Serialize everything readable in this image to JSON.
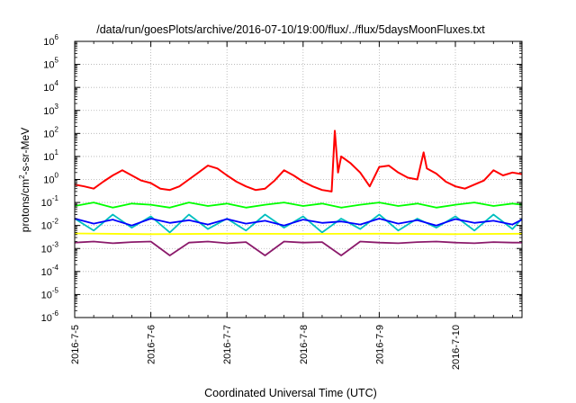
{
  "chart_data": {
    "type": "line",
    "title": "/data/run/goesPlots/archive/2016-07-10/19:00/flux/../flux/5daysMoonFluxes.txt",
    "xlabel": "Coordinated Universal Time (UTC)",
    "ylabel_prefix": "protons/cm",
    "ylabel_sup": "2",
    "ylabel_suffix": "-s-sr-MeV",
    "y_scale": "log",
    "ylim": [
      1e-06,
      1000000.0
    ],
    "y_ticks": [
      {
        "base": "10",
        "exp": "-6",
        "value": 1e-06
      },
      {
        "base": "10",
        "exp": "-5",
        "value": 1e-05
      },
      {
        "base": "10",
        "exp": "-4",
        "value": 0.0001
      },
      {
        "base": "10",
        "exp": "-3",
        "value": 0.001
      },
      {
        "base": "10",
        "exp": "-2",
        "value": 0.01
      },
      {
        "base": "10",
        "exp": "-1",
        "value": 0.1
      },
      {
        "base": "10",
        "exp": "0",
        "value": 1
      },
      {
        "base": "10",
        "exp": "1",
        "value": 10
      },
      {
        "base": "10",
        "exp": "2",
        "value": 100
      },
      {
        "base": "10",
        "exp": "3",
        "value": 1000
      },
      {
        "base": "10",
        "exp": "4",
        "value": 10000
      },
      {
        "base": "10",
        "exp": "5",
        "value": 100000
      },
      {
        "base": "10",
        "exp": "6",
        "value": 1000000
      }
    ],
    "xlim": [
      "2016-07-05 00:00",
      "2016-07-10 21:00"
    ],
    "x_tick_labels": [
      "2016-7-5",
      "2016-7-6",
      "2016-7-7",
      "2016-7-8",
      "2016-7-9",
      "2016-7-10"
    ],
    "grid": true,
    "legend": "none",
    "series": [
      {
        "color": "#ff0000",
        "x": [
          "2016-07-05 00:00",
          "2016-07-05 03:00",
          "2016-07-05 06:00",
          "2016-07-05 09:00",
          "2016-07-05 12:00",
          "2016-07-05 15:00",
          "2016-07-05 18:00",
          "2016-07-05 21:00",
          "2016-07-06 00:00",
          "2016-07-06 03:00",
          "2016-07-06 06:00",
          "2016-07-06 09:00",
          "2016-07-06 12:00",
          "2016-07-06 15:00",
          "2016-07-06 18:00",
          "2016-07-06 21:00",
          "2016-07-07 00:00",
          "2016-07-07 03:00",
          "2016-07-07 06:00",
          "2016-07-07 09:00",
          "2016-07-07 12:00",
          "2016-07-07 15:00",
          "2016-07-07 18:00",
          "2016-07-07 21:00",
          "2016-07-08 00:00",
          "2016-07-08 03:00",
          "2016-07-08 06:00",
          "2016-07-08 09:00",
          "2016-07-08 10:00",
          "2016-07-08 11:00",
          "2016-07-08 12:00",
          "2016-07-08 15:00",
          "2016-07-08 18:00",
          "2016-07-08 21:00",
          "2016-07-09 00:00",
          "2016-07-09 03:00",
          "2016-07-09 06:00",
          "2016-07-09 09:00",
          "2016-07-09 12:00",
          "2016-07-09 14:00",
          "2016-07-09 15:00",
          "2016-07-09 18:00",
          "2016-07-09 21:00",
          "2016-07-10 00:00",
          "2016-07-10 03:00",
          "2016-07-10 06:00",
          "2016-07-10 09:00",
          "2016-07-10 12:00",
          "2016-07-10 15:00",
          "2016-07-10 18:00",
          "2016-07-10 21:00"
        ],
        "y": [
          0.6,
          0.5,
          0.4,
          0.8,
          1.5,
          2.5,
          1.5,
          0.9,
          0.7,
          0.4,
          0.35,
          0.5,
          1.0,
          2.0,
          4.0,
          3.0,
          1.5,
          0.8,
          0.5,
          0.35,
          0.4,
          0.9,
          2.5,
          1.5,
          0.8,
          0.5,
          0.35,
          0.3,
          130,
          2.0,
          10,
          5,
          2,
          0.5,
          3.5,
          4,
          2,
          1.2,
          1,
          15,
          3,
          1.8,
          0.8,
          0.5,
          0.4,
          0.6,
          0.9,
          2.5,
          1.5,
          2,
          1.7
        ]
      },
      {
        "color": "#00ff00",
        "x": [
          "2016-07-05 00:00",
          "2016-07-05 06:00",
          "2016-07-05 12:00",
          "2016-07-05 18:00",
          "2016-07-06 00:00",
          "2016-07-06 06:00",
          "2016-07-06 12:00",
          "2016-07-06 18:00",
          "2016-07-07 00:00",
          "2016-07-07 06:00",
          "2016-07-07 12:00",
          "2016-07-07 18:00",
          "2016-07-08 00:00",
          "2016-07-08 06:00",
          "2016-07-08 12:00",
          "2016-07-08 18:00",
          "2016-07-09 00:00",
          "2016-07-09 06:00",
          "2016-07-09 12:00",
          "2016-07-09 18:00",
          "2016-07-10 00:00",
          "2016-07-10 06:00",
          "2016-07-10 12:00",
          "2016-07-10 18:00",
          "2016-07-10 21:00"
        ],
        "y": [
          0.07,
          0.1,
          0.06,
          0.09,
          0.08,
          0.06,
          0.1,
          0.07,
          0.09,
          0.06,
          0.08,
          0.1,
          0.07,
          0.09,
          0.06,
          0.08,
          0.1,
          0.07,
          0.09,
          0.06,
          0.08,
          0.1,
          0.07,
          0.09,
          0.08
        ]
      },
      {
        "color": "#00bfbf",
        "x": [
          "2016-07-05 00:00",
          "2016-07-05 06:00",
          "2016-07-05 12:00",
          "2016-07-05 18:00",
          "2016-07-06 00:00",
          "2016-07-06 06:00",
          "2016-07-06 12:00",
          "2016-07-06 18:00",
          "2016-07-07 00:00",
          "2016-07-07 06:00",
          "2016-07-07 12:00",
          "2016-07-07 18:00",
          "2016-07-08 00:00",
          "2016-07-08 06:00",
          "2016-07-08 12:00",
          "2016-07-08 18:00",
          "2016-07-09 00:00",
          "2016-07-09 06:00",
          "2016-07-09 12:00",
          "2016-07-09 18:00",
          "2016-07-10 00:00",
          "2016-07-10 06:00",
          "2016-07-10 12:00",
          "2016-07-10 18:00",
          "2016-07-10 21:00"
        ],
        "y": [
          0.02,
          0.006,
          0.03,
          0.008,
          0.025,
          0.005,
          0.03,
          0.007,
          0.02,
          0.006,
          0.03,
          0.008,
          0.025,
          0.005,
          0.02,
          0.007,
          0.03,
          0.006,
          0.02,
          0.008,
          0.025,
          0.006,
          0.03,
          0.007,
          0.02
        ]
      },
      {
        "color": "#0000ff",
        "x": [
          "2016-07-05 00:00",
          "2016-07-05 06:00",
          "2016-07-05 12:00",
          "2016-07-05 18:00",
          "2016-07-06 00:00",
          "2016-07-06 06:00",
          "2016-07-06 12:00",
          "2016-07-06 18:00",
          "2016-07-07 00:00",
          "2016-07-07 06:00",
          "2016-07-07 12:00",
          "2016-07-07 18:00",
          "2016-07-08 00:00",
          "2016-07-08 06:00",
          "2016-07-08 12:00",
          "2016-07-08 18:00",
          "2016-07-09 00:00",
          "2016-07-09 06:00",
          "2016-07-09 12:00",
          "2016-07-09 18:00",
          "2016-07-10 00:00",
          "2016-07-10 06:00",
          "2016-07-10 12:00",
          "2016-07-10 18:00",
          "2016-07-10 21:00"
        ],
        "y": [
          0.02,
          0.012,
          0.018,
          0.01,
          0.02,
          0.013,
          0.017,
          0.011,
          0.019,
          0.012,
          0.016,
          0.01,
          0.018,
          0.013,
          0.015,
          0.011,
          0.02,
          0.012,
          0.017,
          0.01,
          0.019,
          0.013,
          0.016,
          0.011,
          0.018
        ]
      },
      {
        "color": "#ffff00",
        "x": [
          "2016-07-05 00:00",
          "2016-07-06 00:00",
          "2016-07-07 00:00",
          "2016-07-08 00:00",
          "2016-07-09 00:00",
          "2016-07-10 00:00",
          "2016-07-10 21:00"
        ],
        "y": [
          0.0045,
          0.0042,
          0.0044,
          0.0043,
          0.0044,
          0.0042,
          0.0044
        ]
      },
      {
        "color": "#8b1a6b",
        "x": [
          "2016-07-05 00:00",
          "2016-07-05 06:00",
          "2016-07-05 12:00",
          "2016-07-05 18:00",
          "2016-07-06 00:00",
          "2016-07-06 06:00",
          "2016-07-06 12:00",
          "2016-07-06 18:00",
          "2016-07-07 00:00",
          "2016-07-07 06:00",
          "2016-07-07 12:00",
          "2016-07-07 18:00",
          "2016-07-08 00:00",
          "2016-07-08 06:00",
          "2016-07-08 12:00",
          "2016-07-08 18:00",
          "2016-07-09 00:00",
          "2016-07-09 06:00",
          "2016-07-09 12:00",
          "2016-07-09 18:00",
          "2016-07-10 00:00",
          "2016-07-10 06:00",
          "2016-07-10 12:00",
          "2016-07-10 18:00",
          "2016-07-10 21:00"
        ],
        "y": [
          0.0018,
          0.002,
          0.0017,
          0.0019,
          0.002,
          0.0005,
          0.0018,
          0.002,
          0.0017,
          0.0019,
          0.0005,
          0.002,
          0.0018,
          0.0019,
          0.0005,
          0.002,
          0.0018,
          0.0017,
          0.0019,
          0.002,
          0.0018,
          0.0017,
          0.0019,
          0.0018,
          0.0018
        ]
      }
    ]
  }
}
